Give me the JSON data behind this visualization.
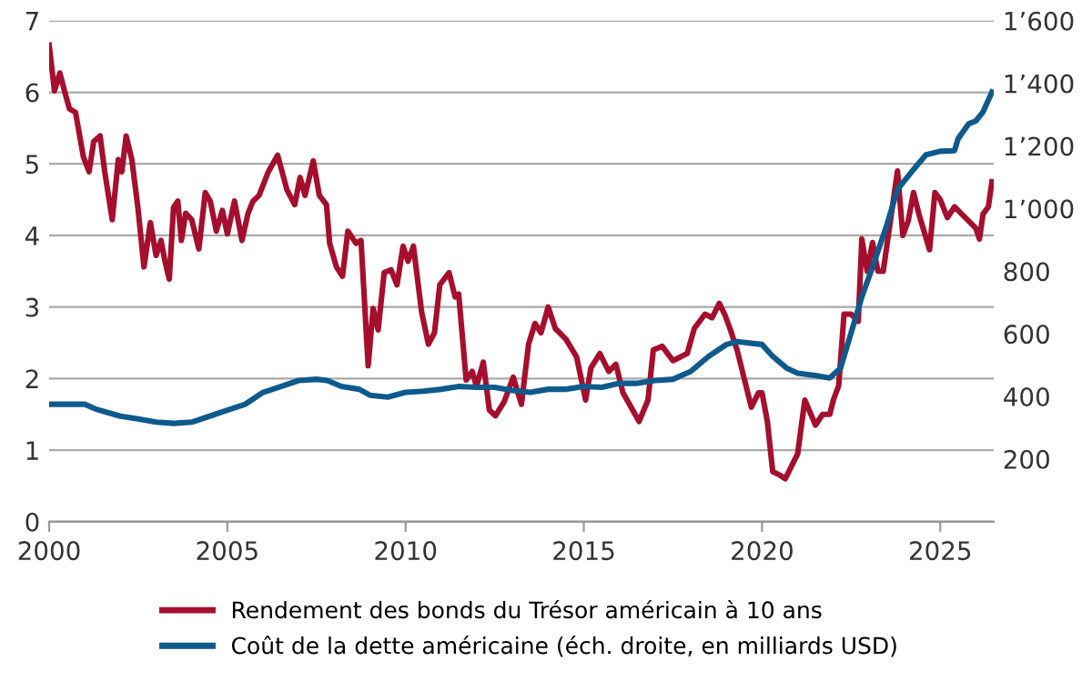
{
  "chart_data": {
    "type": "line",
    "xlim": [
      2000,
      2026.5
    ],
    "xticks": [
      2000,
      2005,
      2010,
      2015,
      2020,
      2025
    ],
    "ylim": [
      0,
      7
    ],
    "yticks": [
      0,
      1,
      2,
      3,
      4,
      5,
      6,
      7
    ],
    "y2lim": [
      0,
      1600
    ],
    "y2ticks": [
      {
        "value": 0,
        "label": null
      },
      {
        "value": 200,
        "label": "200"
      },
      {
        "value": 400,
        "label": "400"
      },
      {
        "value": 600,
        "label": "600"
      },
      {
        "value": 800,
        "label": "800"
      },
      {
        "value": 1000,
        "label": "1’000"
      },
      {
        "value": 1200,
        "label": "1’200"
      },
      {
        "value": 1400,
        "label": "1’400"
      },
      {
        "value": 1600,
        "label": "1’600"
      }
    ],
    "grid": "y",
    "legend": "bottom",
    "line_style": "solid",
    "marker": "none",
    "series": [
      {
        "name": "Rendement des bonds du Trésor américain à 10 ans",
        "color": "#a50f2d",
        "x": [
          2000.0,
          2000.15,
          2000.3,
          2000.43,
          2000.57,
          2000.74,
          2000.96,
          2001.12,
          2001.25,
          2001.43,
          2001.56,
          2001.77,
          2001.94,
          2002.04,
          2002.16,
          2002.32,
          2002.49,
          2002.66,
          2002.84,
          2003.0,
          2003.14,
          2003.25,
          2003.37,
          2003.49,
          2003.61,
          2003.71,
          2003.83,
          2004.0,
          2004.2,
          2004.38,
          2004.52,
          2004.69,
          2004.86,
          2005.0,
          2005.2,
          2005.41,
          2005.58,
          2005.72,
          2005.89,
          2006.15,
          2006.41,
          2006.67,
          2006.89,
          2007.04,
          2007.18,
          2007.41,
          2007.58,
          2007.78,
          2007.87,
          2008.06,
          2008.23,
          2008.38,
          2008.61,
          2008.75,
          2008.95,
          2009.09,
          2009.23,
          2009.4,
          2009.59,
          2009.76,
          2009.93,
          2010.07,
          2010.22,
          2010.45,
          2010.64,
          2010.81,
          2010.96,
          2011.22,
          2011.39,
          2011.49,
          2011.7,
          2011.87,
          2011.99,
          2012.18,
          2012.35,
          2012.52,
          2012.77,
          2013.02,
          2013.25,
          2013.45,
          2013.63,
          2013.8,
          2014.0,
          2014.2,
          2014.5,
          2014.8,
          2015.05,
          2015.2,
          2015.45,
          2015.7,
          2015.9,
          2016.1,
          2016.55,
          2016.8,
          2016.95,
          2017.2,
          2017.5,
          2017.7,
          2017.9,
          2018.1,
          2018.4,
          2018.6,
          2018.8,
          2018.95,
          2019.1,
          2019.3,
          2019.5,
          2019.7,
          2019.9,
          2020.0,
          2020.15,
          2020.3,
          2020.5,
          2020.65,
          2020.8,
          2021.0,
          2021.2,
          2021.5,
          2021.7,
          2021.9,
          2022.0,
          2022.15,
          2022.3,
          2022.5,
          2022.7,
          2022.8,
          2022.95,
          2023.1,
          2023.25,
          2023.4,
          2023.6,
          2023.8,
          2023.95,
          2024.1,
          2024.25,
          2024.4,
          2024.7,
          2024.85,
          2025.0,
          2025.2,
          2025.4,
          2025.6,
          2025.8,
          2026.0,
          2026.1,
          2026.2,
          2026.35,
          2026.45
        ],
        "values": [
          6.66,
          6.02,
          6.27,
          6.02,
          5.77,
          5.72,
          5.1,
          4.89,
          5.31,
          5.39,
          4.89,
          4.22,
          5.06,
          4.89,
          5.39,
          5.06,
          4.39,
          3.56,
          4.18,
          3.72,
          3.93,
          3.64,
          3.39,
          4.39,
          4.48,
          3.93,
          4.31,
          4.22,
          3.81,
          4.6,
          4.48,
          4.06,
          4.35,
          4.02,
          4.48,
          3.93,
          4.31,
          4.48,
          4.56,
          4.89,
          5.12,
          4.64,
          4.43,
          4.81,
          4.56,
          5.04,
          4.56,
          4.43,
          3.89,
          3.56,
          3.43,
          4.06,
          3.89,
          3.93,
          2.18,
          2.98,
          2.68,
          3.48,
          3.52,
          3.31,
          3.85,
          3.64,
          3.85,
          2.93,
          2.48,
          2.64,
          3.31,
          3.48,
          3.14,
          3.18,
          1.98,
          2.1,
          1.89,
          2.23,
          1.56,
          1.48,
          1.68,
          2.02,
          1.64,
          2.48,
          2.77,
          2.64,
          3.0,
          2.7,
          2.55,
          2.3,
          1.7,
          2.15,
          2.35,
          2.1,
          2.2,
          1.8,
          1.4,
          1.7,
          2.4,
          2.45,
          2.25,
          2.3,
          2.35,
          2.7,
          2.9,
          2.85,
          3.05,
          2.9,
          2.7,
          2.4,
          2.0,
          1.6,
          1.8,
          1.8,
          1.4,
          0.7,
          0.65,
          0.6,
          0.75,
          0.95,
          1.7,
          1.35,
          1.5,
          1.5,
          1.7,
          1.9,
          2.9,
          2.9,
          2.8,
          3.95,
          3.5,
          3.9,
          3.5,
          3.5,
          4.2,
          4.9,
          4.0,
          4.2,
          4.6,
          4.3,
          3.8,
          4.6,
          4.5,
          4.25,
          4.4,
          4.3,
          4.2,
          4.1,
          3.95,
          4.3,
          4.4,
          4.75
        ]
      },
      {
        "name": "Coût de la dette américaine (éch. droite, en milliards USD)",
        "color": "#0f5a8c",
        "axis": "y2",
        "x": [
          2000.0,
          2001.0,
          2001.3,
          2002.0,
          2002.5,
          2003.0,
          2003.5,
          2004.0,
          2004.5,
          2005.0,
          2005.5,
          2006.0,
          2006.5,
          2007.0,
          2007.5,
          2007.8,
          2008.2,
          2008.7,
          2009.0,
          2009.5,
          2010.0,
          2010.5,
          2011.0,
          2011.5,
          2012.0,
          2012.5,
          2013.0,
          2013.5,
          2014.0,
          2014.5,
          2015.0,
          2015.5,
          2016.0,
          2016.5,
          2017.0,
          2017.5,
          2018.0,
          2018.5,
          2019.0,
          2019.3,
          2020.0,
          2020.3,
          2020.7,
          2021.0,
          2021.5,
          2021.9,
          2022.2,
          2022.5,
          2022.8,
          2023.1,
          2023.5,
          2023.8,
          2024.2,
          2024.6,
          2025.0,
          2025.4,
          2025.5,
          2025.8,
          2026.0,
          2026.2,
          2026.45
        ],
        "values": [
          375,
          375,
          360,
          337,
          328,
          318,
          314,
          318,
          337,
          356,
          375,
          413,
          432,
          451,
          455,
          451,
          432,
          423,
          404,
          398,
          413,
          417,
          423,
          432,
          429,
          429,
          419,
          413,
          423,
          423,
          432,
          429,
          442,
          442,
          451,
          455,
          480,
          528,
          566,
          575,
          566,
          528,
          490,
          474,
          467,
          459,
          490,
          604,
          718,
          813,
          947,
          1061,
          1118,
          1172,
          1183,
          1185,
          1223,
          1271,
          1280,
          1309,
          1372
        ]
      }
    ]
  }
}
